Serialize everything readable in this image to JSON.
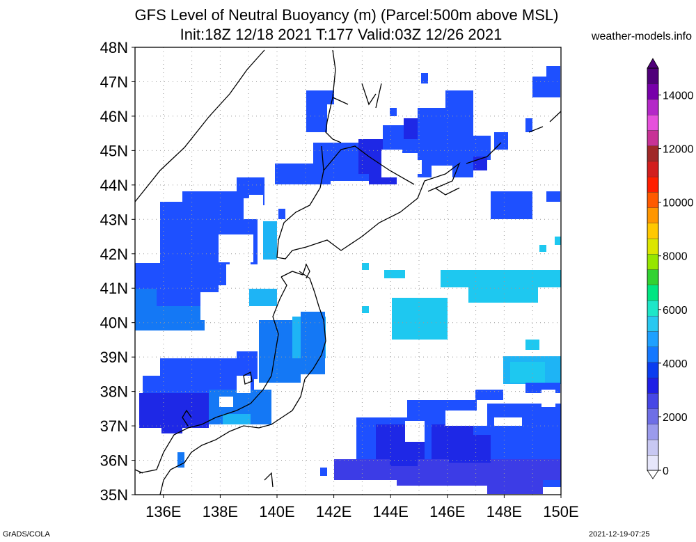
{
  "title_line1": "GFS Level of Neutral Buoyancy (m) (Parcel:500m above MSL)",
  "title_line2": "Init:18Z 12/18 2021 T:177 Valid:03Z 12/26 2021",
  "brand": "weather-models.info",
  "footer_left": "GrADS/COLA",
  "footer_right": "2021-12-19-07:25",
  "map": {
    "lat_labels": [
      "48N",
      "47N",
      "46N",
      "45N",
      "44N",
      "43N",
      "42N",
      "41N",
      "40N",
      "39N",
      "38N",
      "37N",
      "36N",
      "35N"
    ],
    "lon_labels": [
      "136E",
      "138E",
      "140E",
      "142E",
      "144E",
      "146E",
      "148E",
      "150E"
    ],
    "lat_values": [
      48,
      47,
      46,
      45,
      44,
      43,
      42,
      41,
      40,
      39,
      38,
      37,
      36,
      35
    ],
    "lon_values": [
      136,
      138,
      140,
      142,
      144,
      146,
      148,
      150
    ],
    "lat_range": [
      35,
      48
    ],
    "lon_range": [
      135,
      150
    ],
    "grid": true
  },
  "colorbar": {
    "labels": [
      "14000",
      "12000",
      "10000",
      "8000",
      "6000",
      "4000",
      "2000",
      "0"
    ],
    "values": [
      14000,
      12000,
      10000,
      8000,
      6000,
      4000,
      2000,
      0
    ],
    "range": [
      0,
      15000
    ],
    "colors": [
      "#e6e6fa",
      "#c8c8f2",
      "#9b9bec",
      "#6e6ee6",
      "#4646e6",
      "#1e1ee6",
      "#0a3cf0",
      "#1478ff",
      "#1ea0ff",
      "#28c8f0",
      "#1ee6c8",
      "#00e682",
      "#32d232",
      "#96e600",
      "#dce600",
      "#ffc800",
      "#ff9600",
      "#ff5a00",
      "#ff1e00",
      "#d21e1e",
      "#a02828",
      "#c83296",
      "#e650dc",
      "#b428c8",
      "#7800aa",
      "#50007a"
    ]
  },
  "fields": {
    "palette": {
      "deep": "#1e28e6",
      "blue": "#1e50ff",
      "mid": "#1478f5",
      "light": "#1eb4f5",
      "cyan": "#1ec8f0",
      "violet": "#3c3ce6"
    }
  }
}
